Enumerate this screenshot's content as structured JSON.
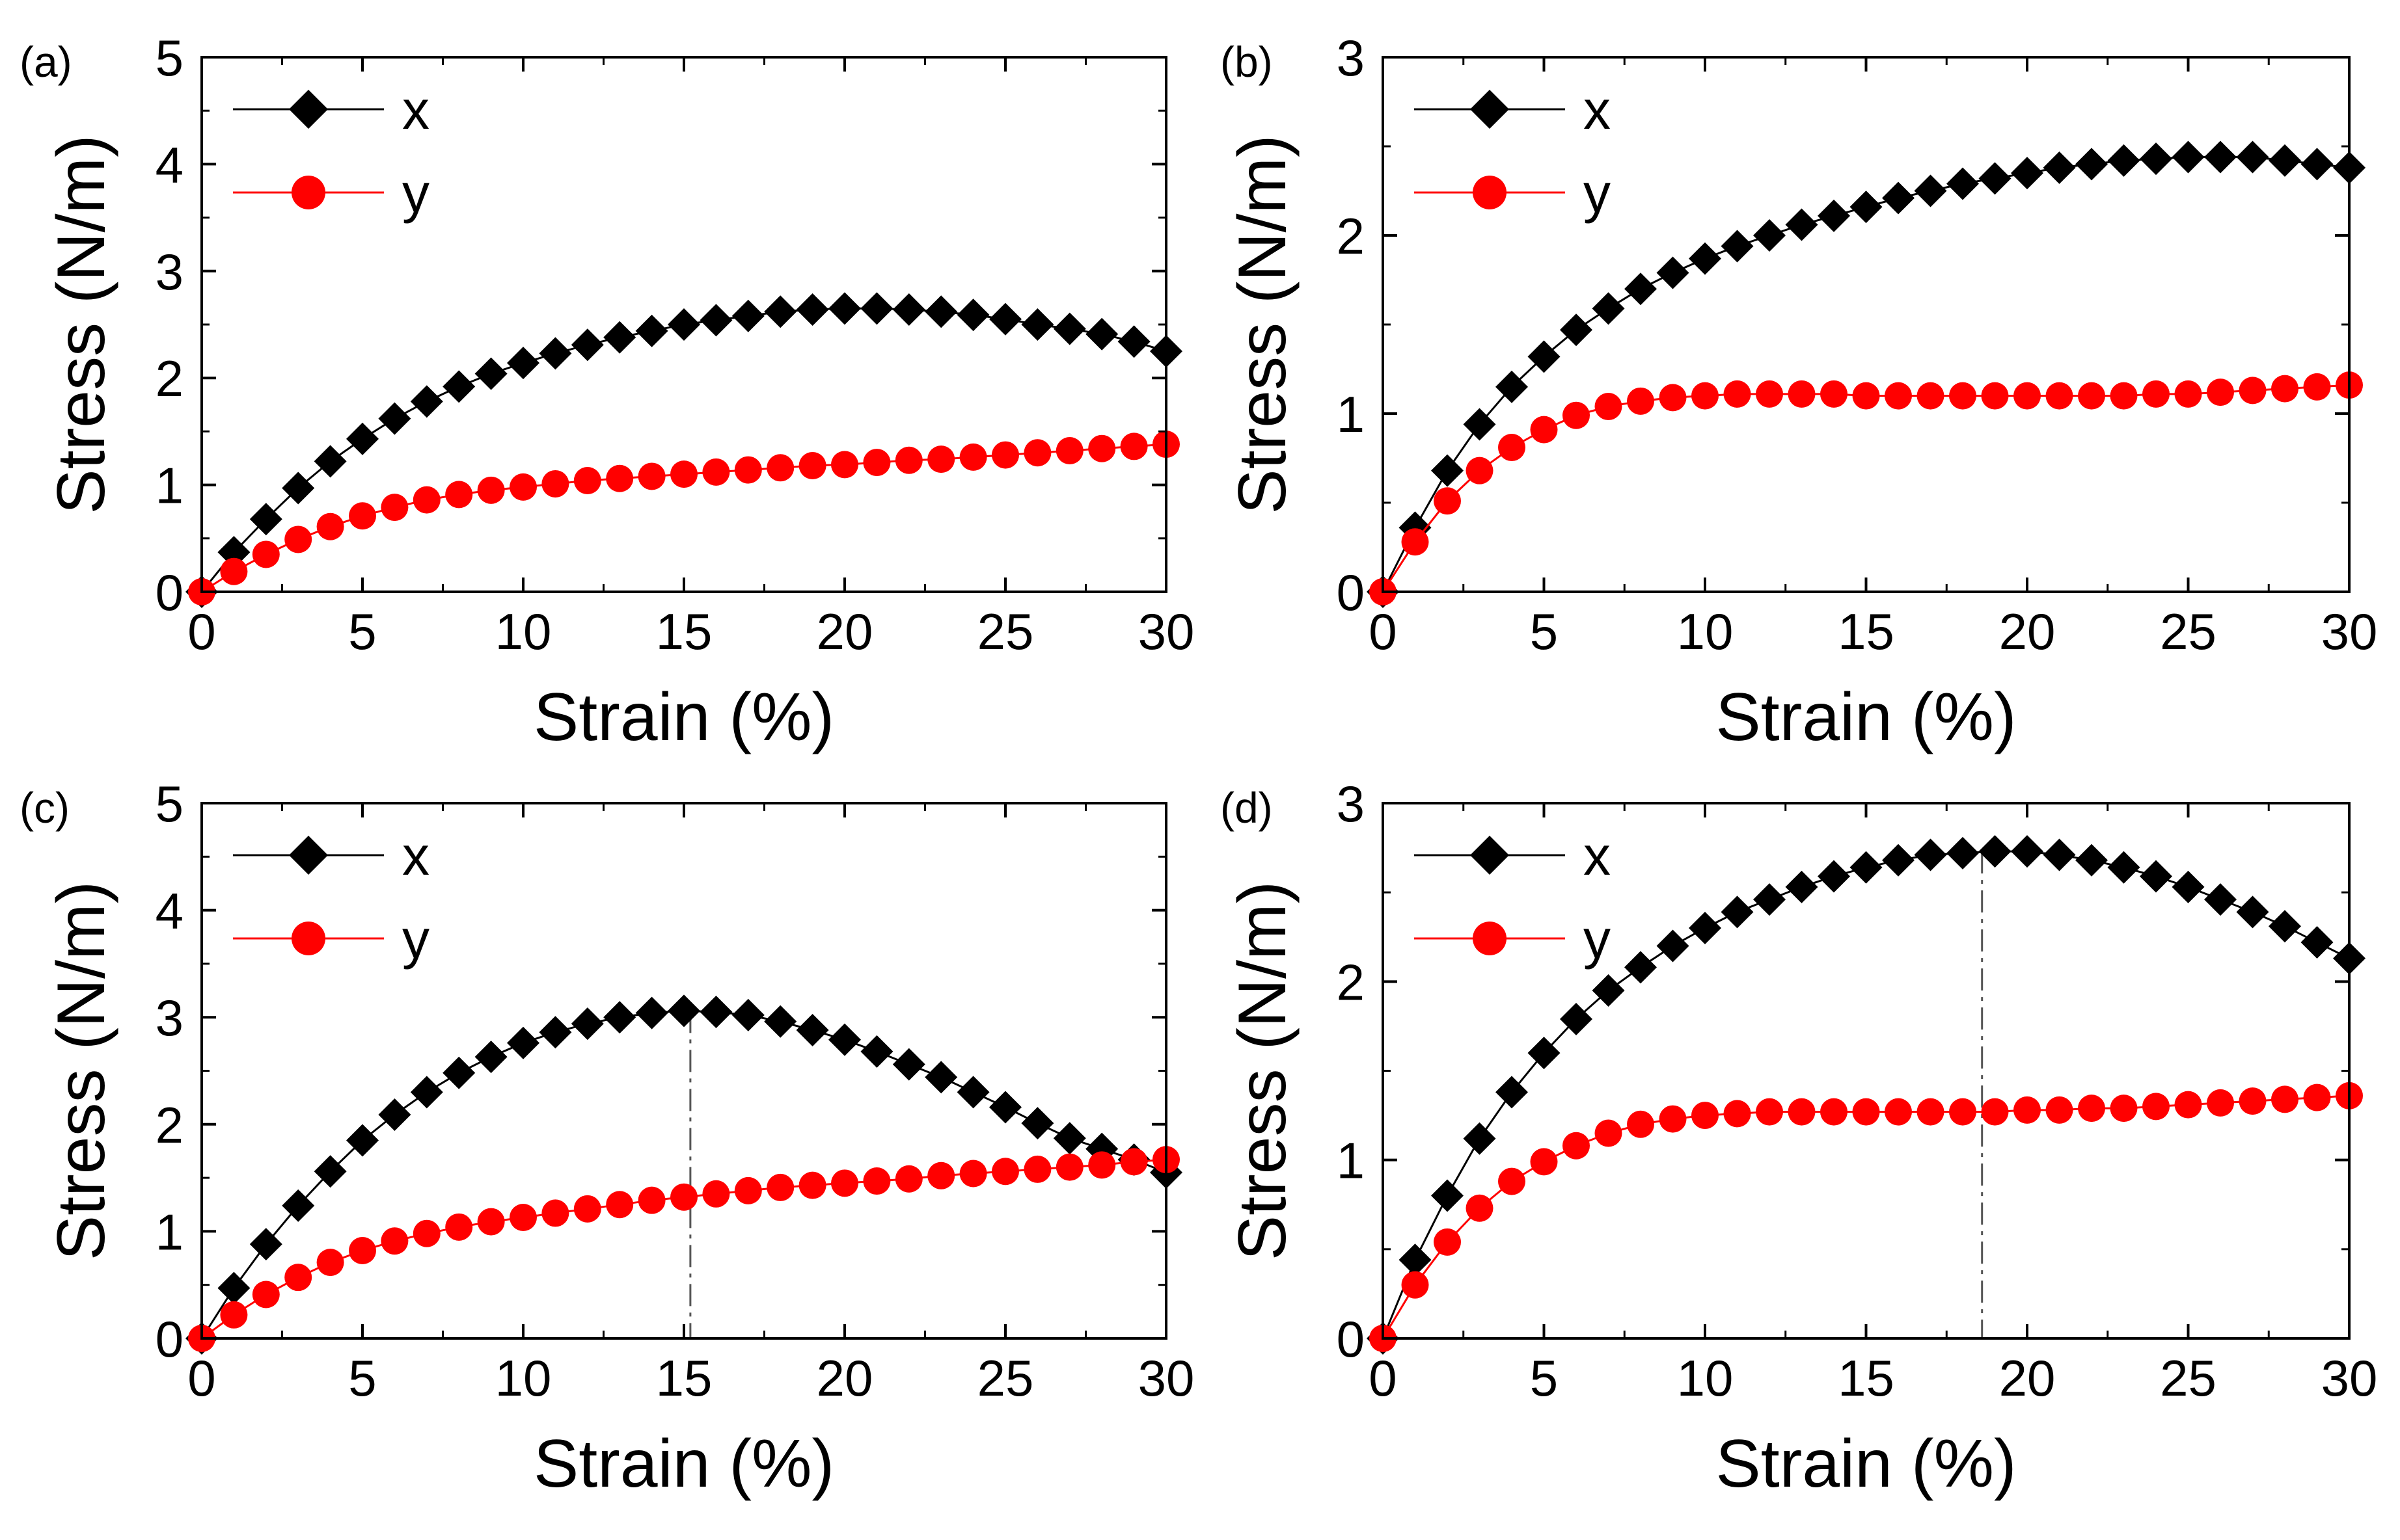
{
  "chart_data": [
    {
      "panel": "(a)",
      "type": "line",
      "xlabel": "Strain (%)",
      "ylabel": "Stress (N/m)",
      "xlim": [
        0,
        30
      ],
      "ylim": [
        0,
        5
      ],
      "xticks": [
        "0",
        "5",
        "10",
        "15",
        "20",
        "25",
        "30"
      ],
      "yticks": [
        "0",
        "1",
        "2",
        "3",
        "4",
        "5"
      ],
      "legend": [
        "x",
        "y"
      ],
      "legend_position": "top-left",
      "x": [
        0,
        1,
        2,
        3,
        4,
        5,
        6,
        7,
        8,
        9,
        10,
        11,
        12,
        13,
        14,
        15,
        16,
        17,
        18,
        19,
        20,
        21,
        22,
        23,
        24,
        25,
        26,
        27,
        28,
        29,
        30
      ],
      "series": [
        {
          "name": "x",
          "marker": "diamond",
          "color": "#000000",
          "values": [
            0,
            0.37,
            0.68,
            0.97,
            1.22,
            1.43,
            1.62,
            1.78,
            1.92,
            2.04,
            2.14,
            2.23,
            2.31,
            2.38,
            2.44,
            2.5,
            2.54,
            2.58,
            2.62,
            2.64,
            2.65,
            2.65,
            2.64,
            2.62,
            2.59,
            2.55,
            2.5,
            2.46,
            2.41,
            2.34,
            2.25
          ]
        },
        {
          "name": "y",
          "marker": "circle",
          "color": "#ff0000",
          "values": [
            0,
            0.19,
            0.35,
            0.49,
            0.61,
            0.71,
            0.79,
            0.86,
            0.91,
            0.95,
            0.98,
            1.01,
            1.04,
            1.06,
            1.08,
            1.1,
            1.12,
            1.14,
            1.16,
            1.18,
            1.19,
            1.21,
            1.23,
            1.24,
            1.26,
            1.28,
            1.3,
            1.32,
            1.34,
            1.36,
            1.38
          ]
        }
      ],
      "vline_x": null
    },
    {
      "panel": "(b)",
      "type": "line",
      "xlabel": "Strain (%)",
      "ylabel": "Stress (N/m)",
      "xlim": [
        0,
        30
      ],
      "ylim": [
        0,
        3
      ],
      "xticks": [
        "0",
        "5",
        "10",
        "15",
        "20",
        "25",
        "30"
      ],
      "yticks": [
        "0",
        "1",
        "2",
        "3"
      ],
      "legend": [
        "x",
        "y"
      ],
      "legend_position": "top-left",
      "x": [
        0,
        1,
        2,
        3,
        4,
        5,
        6,
        7,
        8,
        9,
        10,
        11,
        12,
        13,
        14,
        15,
        16,
        17,
        18,
        19,
        20,
        21,
        22,
        23,
        24,
        25,
        26,
        27,
        28,
        29,
        30
      ],
      "series": [
        {
          "name": "x",
          "marker": "diamond",
          "color": "#000000",
          "values": [
            0,
            0.36,
            0.68,
            0.94,
            1.15,
            1.32,
            1.47,
            1.59,
            1.7,
            1.79,
            1.87,
            1.94,
            2.0,
            2.06,
            2.11,
            2.16,
            2.21,
            2.25,
            2.29,
            2.32,
            2.35,
            2.38,
            2.4,
            2.42,
            2.43,
            2.44,
            2.44,
            2.44,
            2.42,
            2.4,
            2.38
          ]
        },
        {
          "name": "y",
          "marker": "circle",
          "color": "#ff0000",
          "values": [
            0,
            0.28,
            0.51,
            0.68,
            0.81,
            0.91,
            0.99,
            1.04,
            1.07,
            1.09,
            1.1,
            1.11,
            1.11,
            1.11,
            1.11,
            1.1,
            1.1,
            1.1,
            1.1,
            1.1,
            1.1,
            1.1,
            1.1,
            1.1,
            1.11,
            1.11,
            1.12,
            1.13,
            1.14,
            1.15,
            1.16
          ]
        }
      ],
      "vline_x": null
    },
    {
      "panel": "(c)",
      "type": "line",
      "xlabel": "Strain (%)",
      "ylabel": "Stress (N/m)",
      "xlim": [
        0,
        30
      ],
      "ylim": [
        0,
        5
      ],
      "xticks": [
        "0",
        "5",
        "10",
        "15",
        "20",
        "25",
        "30"
      ],
      "yticks": [
        "0",
        "1",
        "2",
        "3",
        "4",
        "5"
      ],
      "legend": [
        "x",
        "y"
      ],
      "legend_position": "top-left",
      "x": [
        0,
        1,
        2,
        3,
        4,
        5,
        6,
        7,
        8,
        9,
        10,
        11,
        12,
        13,
        14,
        15,
        16,
        17,
        18,
        19,
        20,
        21,
        22,
        23,
        24,
        25,
        26,
        27,
        28,
        29,
        30
      ],
      "series": [
        {
          "name": "x",
          "marker": "diamond",
          "color": "#000000",
          "values": [
            0,
            0.47,
            0.88,
            1.24,
            1.56,
            1.85,
            2.09,
            2.3,
            2.48,
            2.63,
            2.76,
            2.86,
            2.94,
            3.0,
            3.04,
            3.06,
            3.05,
            3.02,
            2.96,
            2.88,
            2.79,
            2.68,
            2.56,
            2.44,
            2.3,
            2.16,
            2.01,
            1.87,
            1.77,
            1.67,
            1.55
          ]
        },
        {
          "name": "y",
          "marker": "circle",
          "color": "#ff0000",
          "values": [
            0,
            0.22,
            0.41,
            0.57,
            0.71,
            0.82,
            0.91,
            0.98,
            1.04,
            1.09,
            1.13,
            1.17,
            1.21,
            1.25,
            1.29,
            1.32,
            1.35,
            1.38,
            1.41,
            1.43,
            1.45,
            1.47,
            1.49,
            1.52,
            1.54,
            1.56,
            1.58,
            1.6,
            1.62,
            1.65,
            1.67
          ]
        }
      ],
      "vline_x": 15.2
    },
    {
      "panel": "(d)",
      "type": "line",
      "xlabel": "Strain (%)",
      "ylabel": "Stress (N/m)",
      "xlim": [
        0,
        30
      ],
      "ylim": [
        0,
        3
      ],
      "xticks": [
        "0",
        "5",
        "10",
        "15",
        "20",
        "25",
        "30"
      ],
      "yticks": [
        "0",
        "1",
        "2",
        "3"
      ],
      "legend": [
        "x",
        "y"
      ],
      "legend_position": "top-left",
      "x": [
        0,
        1,
        2,
        3,
        4,
        5,
        6,
        7,
        8,
        9,
        10,
        11,
        12,
        13,
        14,
        15,
        16,
        17,
        18,
        19,
        20,
        21,
        22,
        23,
        24,
        25,
        26,
        27,
        28,
        29,
        30
      ],
      "series": [
        {
          "name": "x",
          "marker": "diamond",
          "color": "#000000",
          "values": [
            0,
            0.44,
            0.8,
            1.12,
            1.38,
            1.6,
            1.79,
            1.95,
            2.08,
            2.2,
            2.3,
            2.39,
            2.46,
            2.53,
            2.59,
            2.64,
            2.68,
            2.71,
            2.72,
            2.73,
            2.73,
            2.71,
            2.68,
            2.64,
            2.59,
            2.53,
            2.46,
            2.39,
            2.31,
            2.22,
            2.13
          ]
        },
        {
          "name": "y",
          "marker": "circle",
          "color": "#ff0000",
          "values": [
            0,
            0.3,
            0.54,
            0.73,
            0.88,
            0.99,
            1.08,
            1.15,
            1.2,
            1.23,
            1.25,
            1.26,
            1.27,
            1.27,
            1.27,
            1.27,
            1.27,
            1.27,
            1.27,
            1.27,
            1.28,
            1.28,
            1.29,
            1.29,
            1.3,
            1.31,
            1.32,
            1.33,
            1.34,
            1.35,
            1.36
          ]
        }
      ],
      "vline_x": 18.6
    }
  ]
}
